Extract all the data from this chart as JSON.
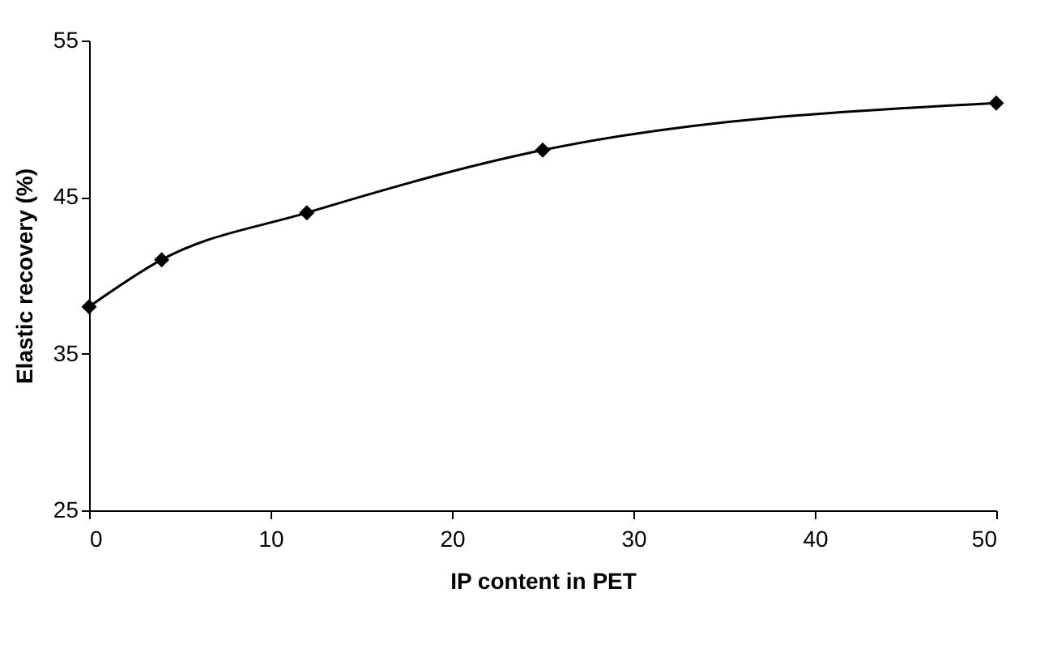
{
  "chart_data": {
    "type": "line",
    "xlabel": "IP content in PET",
    "ylabel": "Elastic recovery (%)",
    "x": [
      0,
      4,
      12,
      25,
      50
    ],
    "series": [
      {
        "color": "#000000",
        "values": [
          38,
          41,
          44,
          48,
          51
        ]
      }
    ],
    "xlim": [
      0,
      50
    ],
    "xticks": [
      0,
      10,
      20,
      30,
      40,
      50
    ],
    "ylim": [
      25,
      55
    ],
    "yticks": [
      25,
      35,
      45,
      55
    ],
    "grid": false,
    "legend": false,
    "marker": "diamond",
    "line_style": "solid"
  }
}
